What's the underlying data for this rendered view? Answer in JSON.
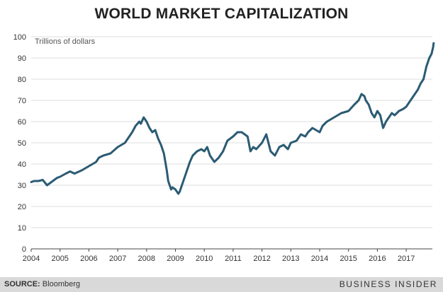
{
  "header": {
    "title": "WORLD MARKET CAPITALIZATION"
  },
  "footer": {
    "source_label": "SOURCE:",
    "source_value": "Bloomberg",
    "brand": "BUSINESS INSIDER"
  },
  "colors": {
    "line": "#2b5b73",
    "grid": "#dddddd",
    "footer_bg": "#d9d9d9"
  },
  "chart_data": {
    "type": "line",
    "title": "WORLD MARKET CAPITALIZATION",
    "unit_label": "Trillions of dollars",
    "xlabel": "",
    "ylabel": "",
    "xlim": [
      2004.0,
      2017.95
    ],
    "ylim": [
      0,
      100
    ],
    "yticks": [
      0,
      10,
      20,
      30,
      40,
      50,
      60,
      70,
      80,
      90,
      100
    ],
    "xticks": [
      "2004",
      "2005",
      "2006",
      "2007",
      "2008",
      "2009",
      "2010",
      "2011",
      "2012",
      "2013",
      "2014",
      "2015",
      "2016",
      "2017"
    ],
    "grid": "horizontal",
    "legend": "none",
    "series": [
      {
        "x": [
          2004.0,
          2004.1,
          2004.25,
          2004.4,
          2004.55,
          2004.75,
          2004.9,
          2005.0,
          2005.2,
          2005.35,
          2005.5,
          2005.75,
          2006.0,
          2006.25,
          2006.35,
          2006.5,
          2006.75,
          2007.0,
          2007.25,
          2007.5,
          2007.62,
          2007.75,
          2007.8,
          2007.9,
          2008.0,
          2008.1,
          2008.2,
          2008.3,
          2008.4,
          2008.5,
          2008.6,
          2008.7,
          2008.75,
          2008.8,
          2008.85,
          2008.9,
          2009.0,
          2009.1,
          2009.15,
          2009.2,
          2009.3,
          2009.4,
          2009.5,
          2009.6,
          2009.75,
          2009.9,
          2010.0,
          2010.1,
          2010.2,
          2010.35,
          2010.5,
          2010.65,
          2010.8,
          2011.0,
          2011.15,
          2011.3,
          2011.5,
          2011.6,
          2011.7,
          2011.8,
          2012.0,
          2012.15,
          2012.3,
          2012.45,
          2012.6,
          2012.75,
          2012.9,
          2013.0,
          2013.2,
          2013.35,
          2013.5,
          2013.6,
          2013.75,
          2014.0,
          2014.1,
          2014.25,
          2014.5,
          2014.75,
          2015.0,
          2015.2,
          2015.35,
          2015.45,
          2015.55,
          2015.6,
          2015.7,
          2015.8,
          2015.9,
          2016.0,
          2016.1,
          2016.2,
          2016.3,
          2016.5,
          2016.6,
          2016.75,
          2016.9,
          2017.0,
          2017.2,
          2017.4,
          2017.5,
          2017.6,
          2017.7,
          2017.8,
          2017.88,
          2017.93,
          2017.95
        ],
        "values": [
          31.5,
          32,
          32,
          32.5,
          30,
          32,
          33.5,
          34,
          35.5,
          36.5,
          35.5,
          37,
          39,
          41,
          43,
          44,
          45,
          48,
          50,
          55,
          58,
          60,
          59,
          62,
          60,
          57,
          55,
          56,
          52,
          49,
          45,
          37,
          32,
          30,
          28,
          29,
          28,
          26,
          27,
          29,
          33,
          37,
          41,
          44,
          46,
          47,
          46,
          48,
          44,
          41,
          43,
          46,
          51,
          53,
          55,
          55,
          53,
          46,
          48,
          47,
          50,
          54,
          46,
          44,
          48,
          49,
          47,
          50,
          51,
          54,
          53,
          55,
          57,
          55,
          58,
          60,
          62,
          64,
          65,
          68,
          70,
          73,
          72,
          70,
          68,
          64,
          62,
          65,
          63,
          57,
          60,
          64,
          63,
          65,
          66,
          67,
          71,
          75,
          78,
          80,
          86,
          90,
          92,
          95,
          97
        ]
      }
    ]
  }
}
